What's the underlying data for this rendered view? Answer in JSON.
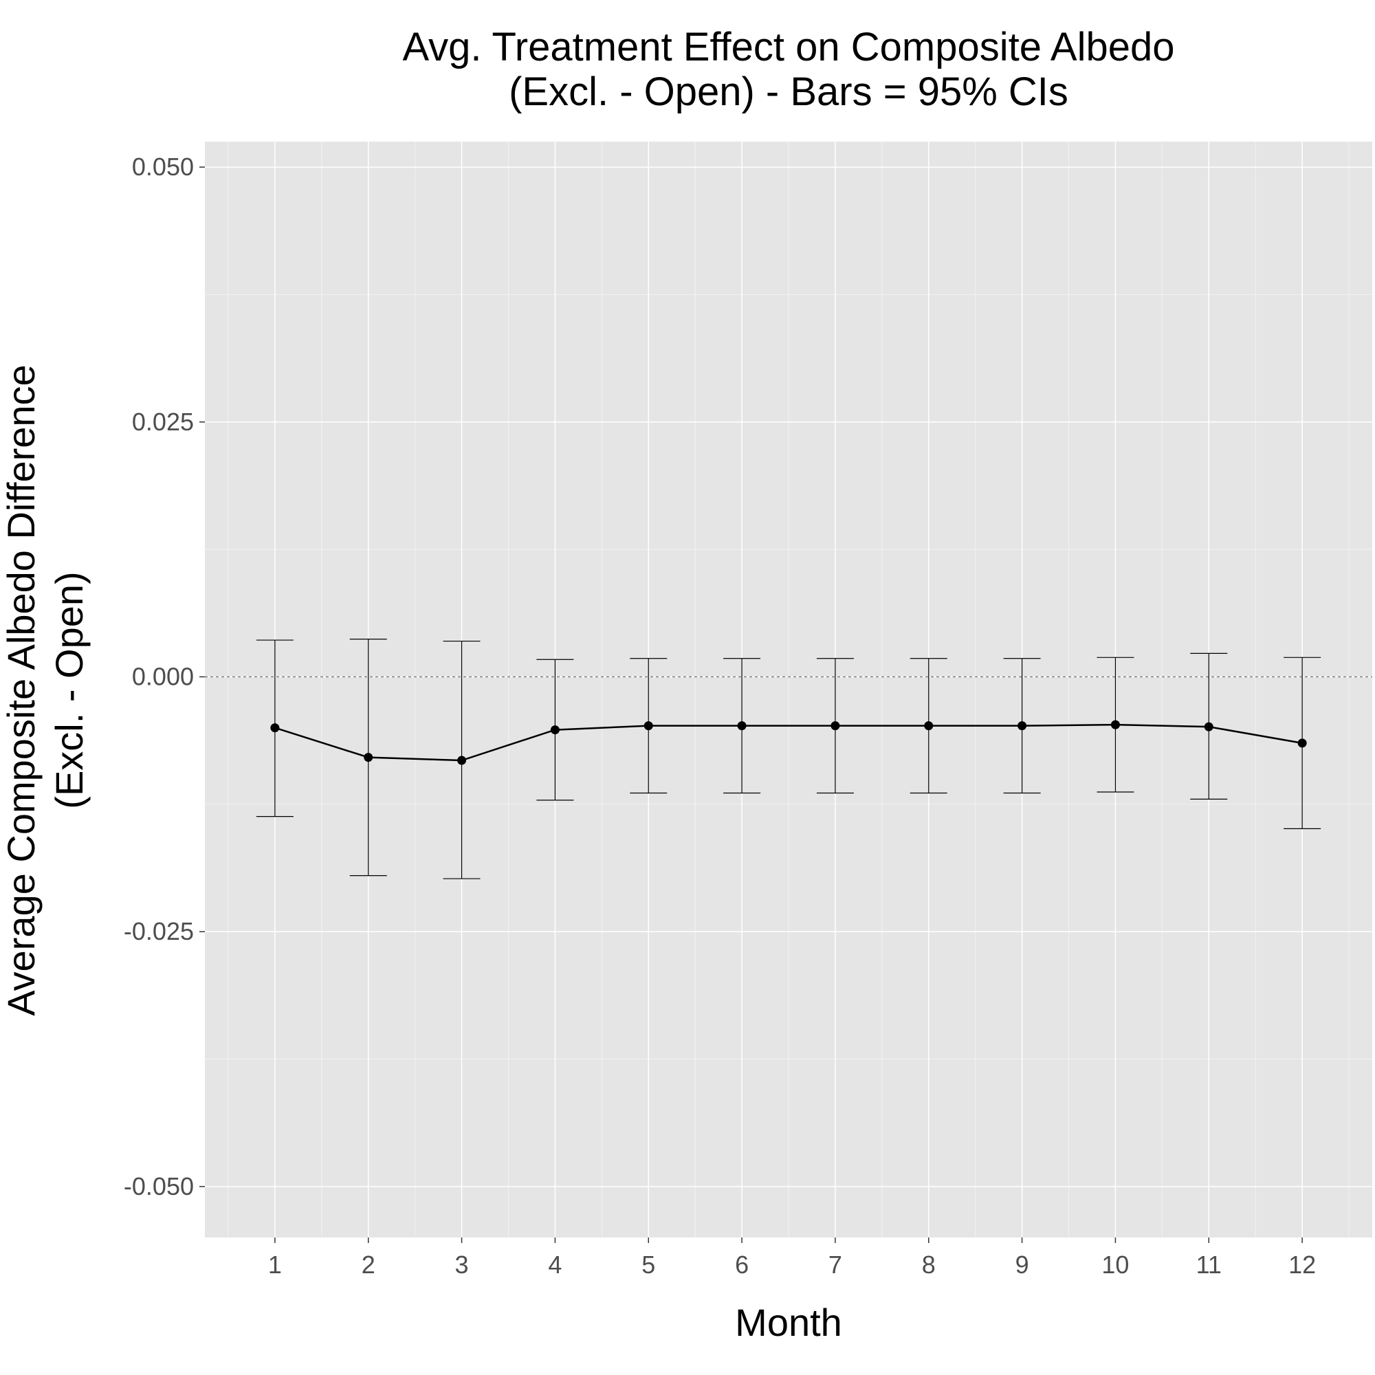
{
  "chart_data": {
    "type": "line",
    "title": [
      "Avg. Treatment Effect on Composite Albedo",
      "(Excl. - Open) - Bars = 95% CIs"
    ],
    "xlabel": "Month",
    "ylabel": [
      "Average Composite Albedo Difference",
      "(Excl. - Open)"
    ],
    "x": [
      1,
      2,
      3,
      4,
      5,
      6,
      7,
      8,
      9,
      10,
      11,
      12
    ],
    "x_tick_labels": [
      "1",
      "2",
      "3",
      "4",
      "5",
      "6",
      "7",
      "8",
      "9",
      "10",
      "11",
      "12"
    ],
    "y_ticks": [
      0.05,
      0.025,
      0,
      -0.025,
      -0.05
    ],
    "y_tick_labels": [
      "0.050",
      "0.025",
      "0.000",
      "-0.025",
      "-0.050"
    ],
    "xlim": [
      0.25,
      12.75
    ],
    "ylim": [
      -0.055,
      0.0525
    ],
    "reference_line": {
      "y": 0,
      "style": "dotted"
    },
    "grid": true,
    "series": [
      {
        "values": [
          -0.005,
          -0.0079,
          -0.0082,
          -0.0052,
          -0.0048,
          -0.0048,
          -0.0048,
          -0.0048,
          -0.0048,
          -0.0047,
          -0.0049,
          -0.0065
        ],
        "lower": [
          -0.0137,
          -0.0195,
          -0.0198,
          -0.0121,
          -0.0114,
          -0.0114,
          -0.0114,
          -0.0114,
          -0.0114,
          -0.0113,
          -0.012,
          -0.0149
        ],
        "upper": [
          0.0036,
          0.0037,
          0.0035,
          0.0017,
          0.0018,
          0.0018,
          0.0018,
          0.0018,
          0.0018,
          0.0019,
          0.0023,
          0.0019
        ]
      }
    ],
    "colors": {
      "panel": "#e5e5e5",
      "grid": "#ffffff",
      "line": "#000000",
      "tick_text": "#4d4d4d",
      "ref_line": "#7f7f7f"
    }
  }
}
